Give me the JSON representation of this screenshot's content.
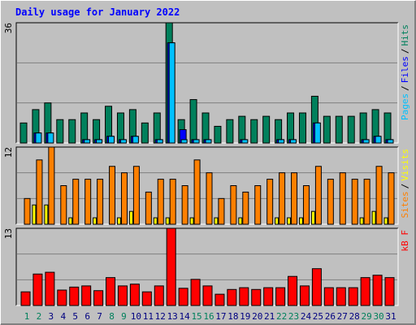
{
  "chart_data": {
    "type": "bar",
    "title": "Daily usage for January 2022",
    "categories": [
      "1",
      "2",
      "3",
      "4",
      "5",
      "6",
      "7",
      "8",
      "9",
      "10",
      "11",
      "12",
      "13",
      "14",
      "15",
      "16",
      "17",
      "18",
      "19",
      "20",
      "21",
      "22",
      "23",
      "24",
      "25",
      "26",
      "27",
      "28",
      "29",
      "30",
      "31"
    ],
    "category_colors": [
      "#00805c",
      "#00805c",
      "#000080",
      "#000080",
      "#000080",
      "#000080",
      "#000080",
      "#00805c",
      "#00805c",
      "#000080",
      "#000080",
      "#000080",
      "#000080",
      "#000080",
      "#00805c",
      "#00805c",
      "#000080",
      "#000080",
      "#000080",
      "#000080",
      "#000080",
      "#00805c",
      "#00805c",
      "#000080",
      "#000080",
      "#000080",
      "#000080",
      "#000080",
      "#00805c",
      "#00805c",
      "#000080"
    ],
    "legend_separator": "/",
    "grid": true,
    "panels": [
      {
        "ylim": [
          0,
          36
        ],
        "yticks": [
          36
        ],
        "series": [
          {
            "name": "Pages",
            "color": "#00c0ff",
            "values": [
              0,
              3,
              3,
              0,
              0,
              1,
              1,
              2,
              1,
              2,
              0,
              1,
              30,
              1,
              1,
              1,
              0,
              0,
              1,
              0,
              0,
              1,
              1,
              0,
              6,
              0,
              0,
              0,
              1,
              2,
              1
            ]
          },
          {
            "name": "Files",
            "color": "#0000ff",
            "values": [
              0,
              3,
              3,
              0,
              0,
              1,
              1,
              2,
              1,
              2,
              0,
              1,
              30,
              4,
              1,
              1,
              0,
              0,
              1,
              0,
              0,
              1,
              1,
              0,
              6,
              0,
              0,
              0,
              1,
              2,
              1
            ]
          },
          {
            "name": "Hits",
            "color": "#00805c",
            "values": [
              6,
              10,
              12,
              7,
              7,
              9,
              7,
              11,
              9,
              10,
              6,
              9,
              36,
              7,
              13,
              9,
              5,
              7,
              8,
              7,
              8,
              7,
              9,
              9,
              14,
              8,
              8,
              8,
              9,
              10,
              9
            ]
          }
        ]
      },
      {
        "ylim": [
          0,
          12
        ],
        "yticks": [
          12
        ],
        "series": [
          {
            "name": "Sites",
            "color": "#ff8000",
            "values": [
              4,
              10,
              12,
              6,
              7,
              7,
              7,
              9,
              8,
              9,
              5,
              7,
              7,
              6,
              10,
              8,
              4,
              6,
              5,
              6,
              7,
              8,
              8,
              6,
              9,
              7,
              8,
              7,
              7,
              9,
              8
            ]
          },
          {
            "name": "Visits",
            "color": "#ffff00",
            "values": [
              0,
              3,
              3,
              0,
              1,
              0,
              1,
              0,
              1,
              2,
              0,
              1,
              1,
              0,
              1,
              0,
              1,
              0,
              1,
              0,
              0,
              1,
              1,
              1,
              2,
              0,
              0,
              0,
              1,
              2,
              1
            ]
          }
        ]
      },
      {
        "ylim": [
          0,
          13
        ],
        "yticks": [
          13
        ],
        "series": [
          {
            "name": "kB F",
            "color": "#ff0000",
            "values": [
              2.3,
              5.3,
              5.6,
              2.6,
              3.1,
              3.3,
              2.5,
              4.7,
              3.3,
              3.6,
              2.3,
              3.3,
              13,
              2.9,
              4.4,
              3.3,
              1.9,
              2.7,
              3.0,
              2.7,
              3.0,
              3.0,
              4.9,
              3.3,
              6.2,
              3.0,
              3.0,
              3.0,
              4.7,
              5.1,
              4.7
            ]
          }
        ]
      }
    ]
  }
}
